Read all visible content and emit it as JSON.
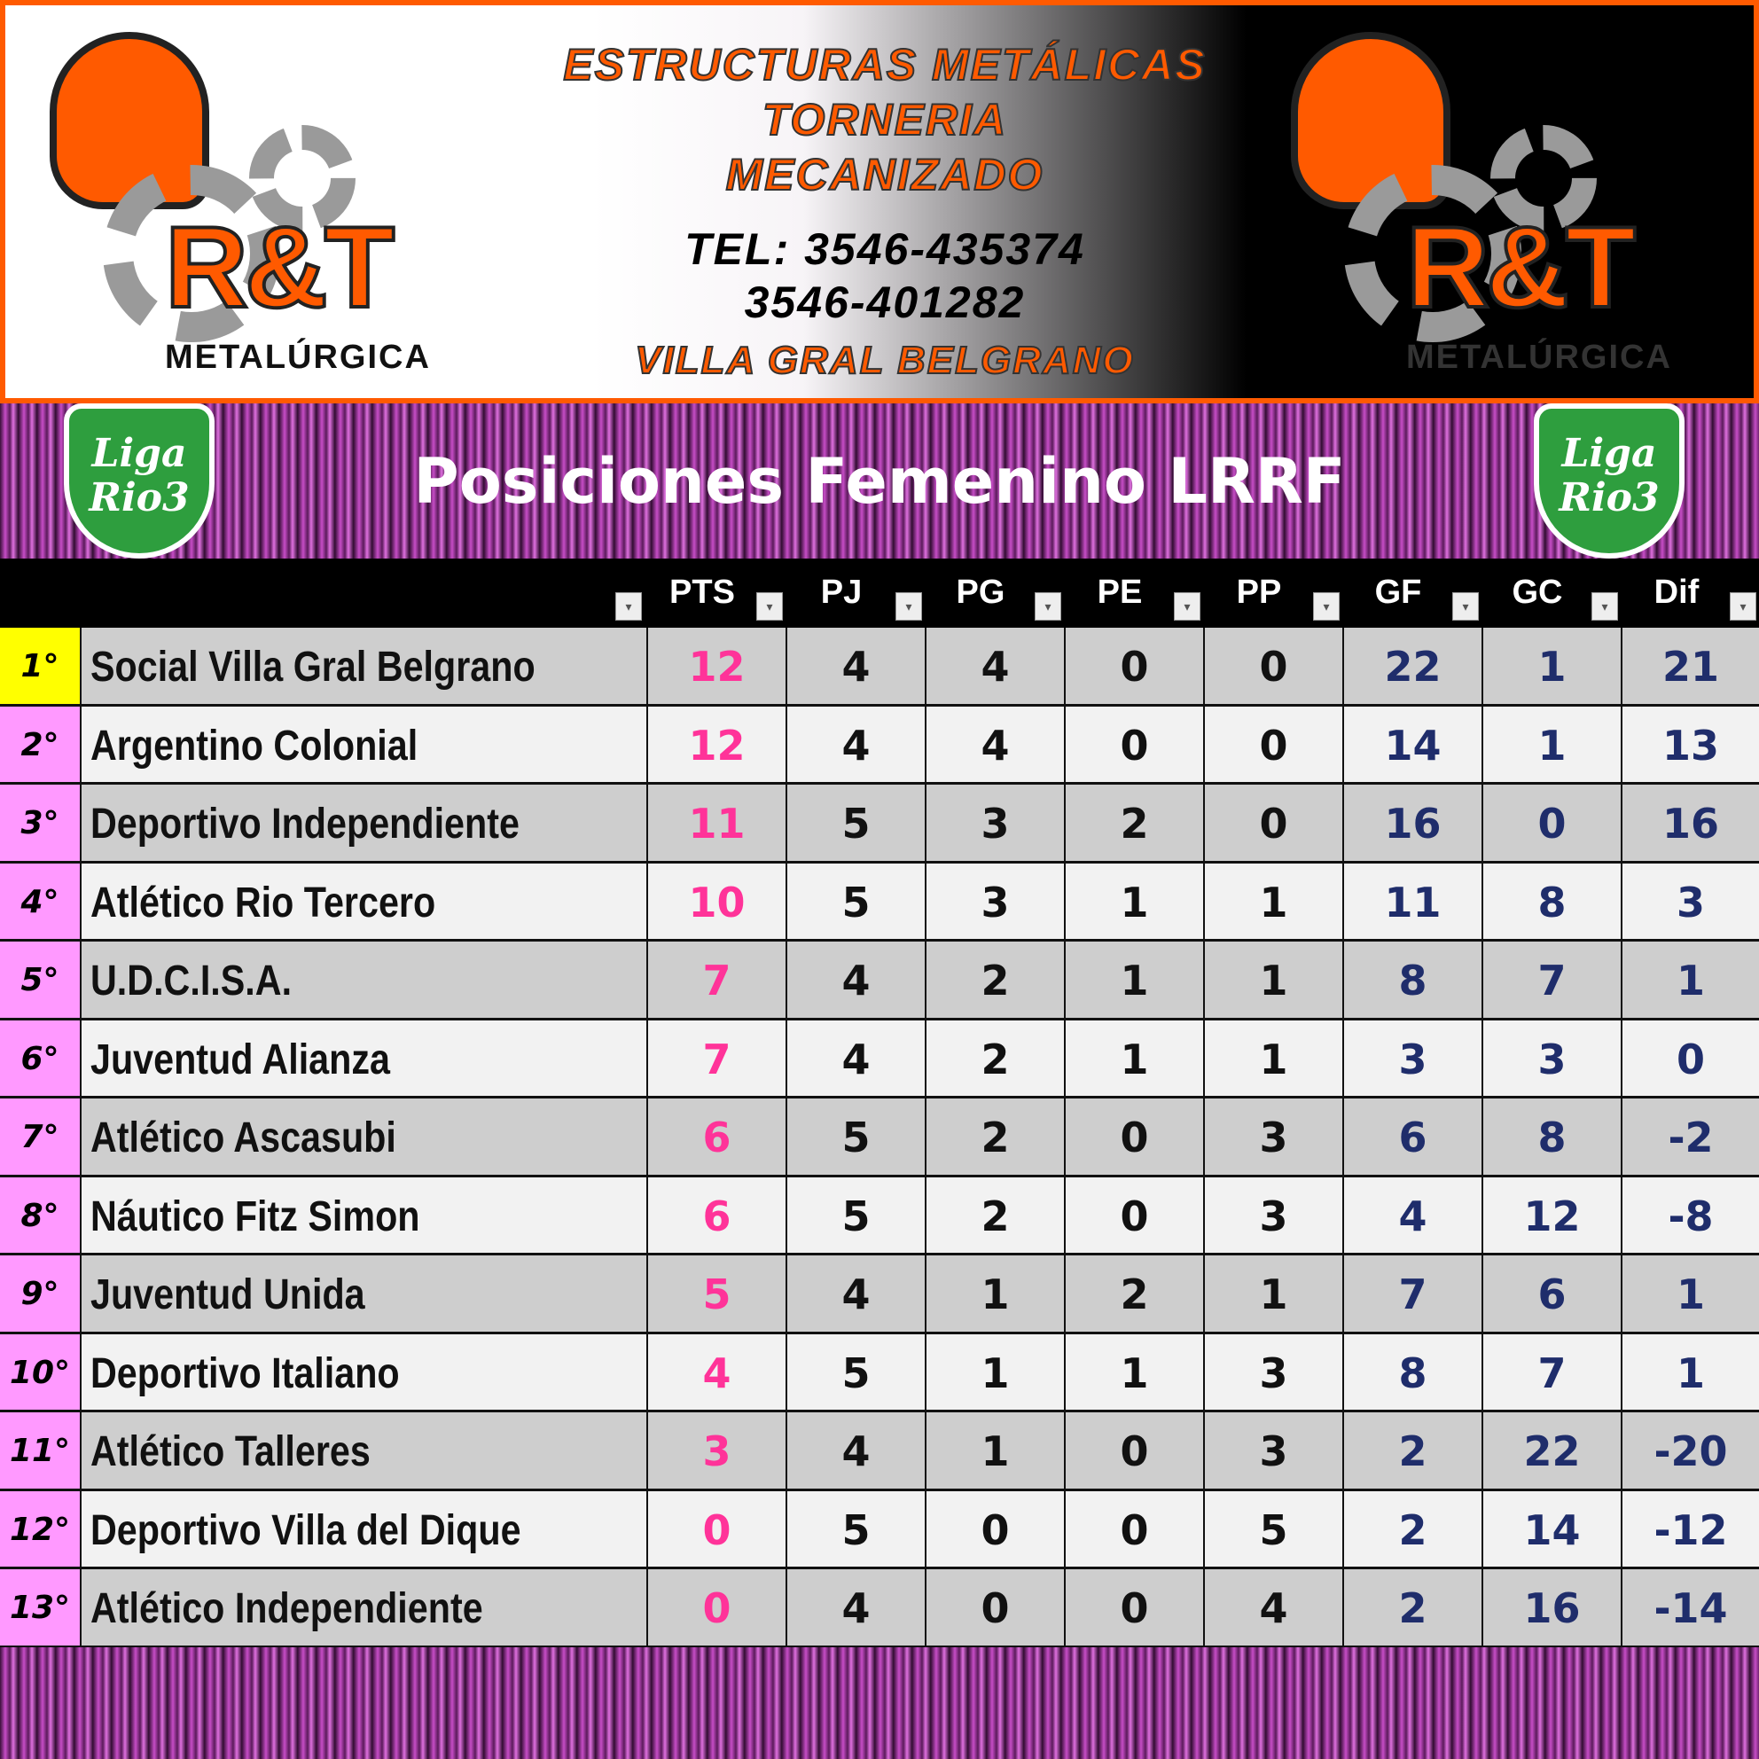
{
  "ad": {
    "brand": "R&T",
    "sub": "METALÚRGICA",
    "line1": "ESTRUCTURAS METÁLICAS",
    "line2": "TORNERIA",
    "line3": "MECANIZADO",
    "tel1": "TEL: 3546-435374",
    "tel2": "3546-401282",
    "city": "VILLA GRAL BELGRANO",
    "accent": "#ff5a00"
  },
  "banner": {
    "title": "Posiciones Femenino LRRF",
    "logo": "Liga Rio3"
  },
  "columns": [
    "PTS",
    "PJ",
    "PG",
    "PE",
    "PP",
    "GF",
    "GC",
    "Dif"
  ],
  "rows": [
    {
      "pos": "1°",
      "team": "Social Villa Gral Belgrano",
      "v": [
        "12",
        "4",
        "4",
        "0",
        "0",
        "22",
        "1",
        "21"
      ]
    },
    {
      "pos": "2°",
      "team": "Argentino Colonial",
      "v": [
        "12",
        "4",
        "4",
        "0",
        "0",
        "14",
        "1",
        "13"
      ]
    },
    {
      "pos": "3°",
      "team": "Deportivo Independiente",
      "v": [
        "11",
        "5",
        "3",
        "2",
        "0",
        "16",
        "0",
        "16"
      ]
    },
    {
      "pos": "4°",
      "team": "Atlético Rio Tercero",
      "v": [
        "10",
        "5",
        "3",
        "1",
        "1",
        "11",
        "8",
        "3"
      ]
    },
    {
      "pos": "5°",
      "team": "U.D.C.I.S.A.",
      "v": [
        "7",
        "4",
        "2",
        "1",
        "1",
        "8",
        "7",
        "1"
      ]
    },
    {
      "pos": "6°",
      "team": "Juventud Alianza",
      "v": [
        "7",
        "4",
        "2",
        "1",
        "1",
        "3",
        "3",
        "0"
      ]
    },
    {
      "pos": "7°",
      "team": "Atlético Ascasubi",
      "v": [
        "6",
        "5",
        "2",
        "0",
        "3",
        "6",
        "8",
        "-2"
      ]
    },
    {
      "pos": "8°",
      "team": "Náutico Fitz Simon",
      "v": [
        "6",
        "5",
        "2",
        "0",
        "3",
        "4",
        "12",
        "-8"
      ]
    },
    {
      "pos": "9°",
      "team": "Juventud  Unida",
      "v": [
        "5",
        "4",
        "1",
        "2",
        "1",
        "7",
        "6",
        "1"
      ]
    },
    {
      "pos": "10°",
      "team": "Deportivo Italiano",
      "v": [
        "4",
        "5",
        "1",
        "1",
        "3",
        "8",
        "7",
        "1"
      ]
    },
    {
      "pos": "11°",
      "team": "Atlético Talleres",
      "v": [
        "3",
        "4",
        "1",
        "0",
        "3",
        "2",
        "22",
        "-20"
      ]
    },
    {
      "pos": "12°",
      "team": "Deportivo Villa del Dique",
      "v": [
        "0",
        "5",
        "0",
        "0",
        "5",
        "2",
        "14",
        "-12"
      ]
    },
    {
      "pos": "13°",
      "team": "Atlético Independiente",
      "v": [
        "0",
        "4",
        "0",
        "0",
        "4",
        "2",
        "16",
        "-14"
      ]
    }
  ]
}
